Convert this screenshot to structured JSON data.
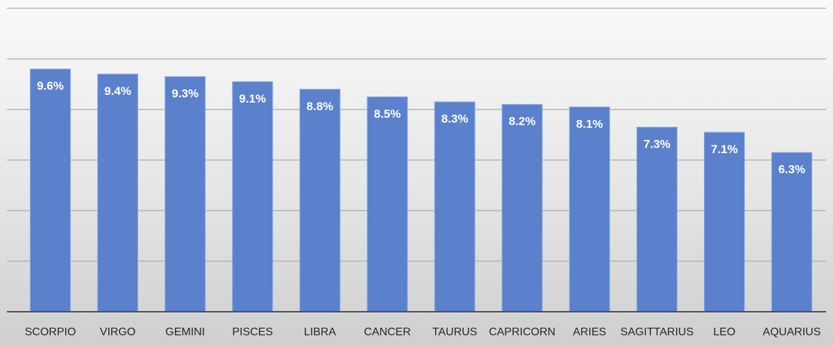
{
  "chart_data": {
    "type": "bar",
    "title": "",
    "xlabel": "",
    "ylabel": "",
    "ylim": [
      0,
      12
    ],
    "grid": true,
    "legend": "none",
    "bar_color": "#5b81cc",
    "categories": [
      "SCORPIO",
      "VIRGO",
      "GEMINI",
      "PISCES",
      "LIBRA",
      "CANCER",
      "TAURUS",
      "CAPRICORN",
      "ARIES",
      "SAGITTARIUS",
      "LEO",
      "AQUARIUS"
    ],
    "values": [
      9.6,
      9.4,
      9.3,
      9.1,
      8.8,
      8.5,
      8.3,
      8.2,
      8.1,
      7.3,
      7.1,
      6.3
    ],
    "data_labels": [
      "9.6%",
      "9.4%",
      "9.3%",
      "9.1%",
      "8.8%",
      "8.5%",
      "8.3%",
      "8.2%",
      "8.1%",
      "7.3%",
      "7.1%",
      "6.3%"
    ]
  }
}
